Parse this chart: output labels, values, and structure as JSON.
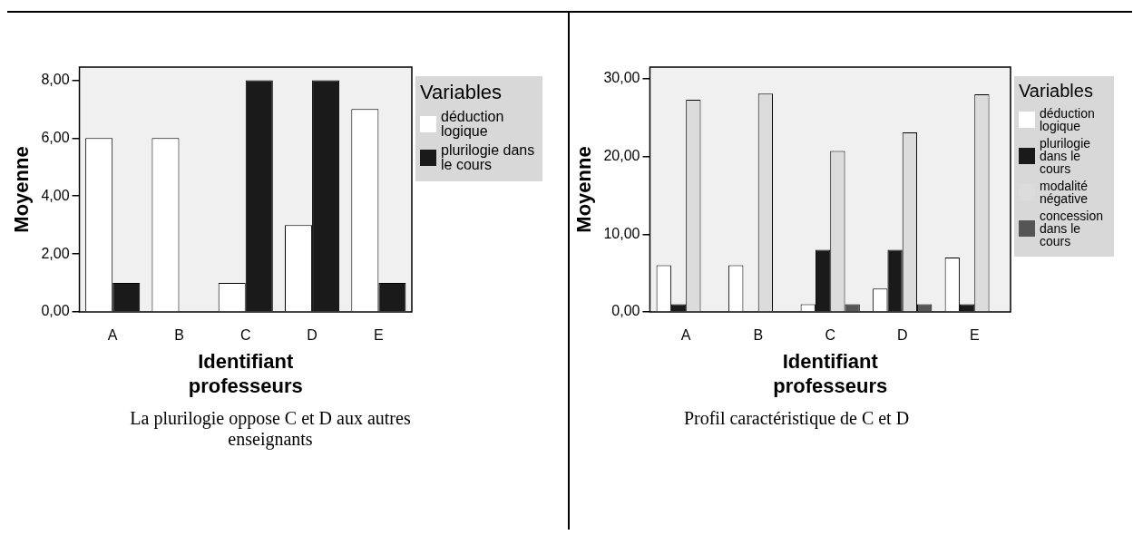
{
  "chart_data": [
    {
      "type": "bar",
      "xlabel": "Identifiant professeurs",
      "ylabel": "Moyenne",
      "legend_title": "Variables",
      "legend": "right",
      "grid": false,
      "categories": [
        "A",
        "B",
        "C",
        "D",
        "E"
      ],
      "series": [
        {
          "name": "déduction logique",
          "color": "#ffffff",
          "values": [
            6,
            6,
            1,
            3,
            7
          ]
        },
        {
          "name": "plurilogie dans le cours",
          "color": "#1a1a1a",
          "values": [
            1,
            0,
            8,
            8,
            1
          ]
        }
      ],
      "ylim": [
        0,
        8.45
      ],
      "yticks": [
        {
          "value": 0,
          "label": "0,00"
        },
        {
          "value": 2,
          "label": "2,00"
        },
        {
          "value": 4,
          "label": "4,00"
        },
        {
          "value": 6,
          "label": "6,00"
        },
        {
          "value": 8,
          "label": "8,00"
        }
      ],
      "annotations": [
        "La plurilogie oppose C et D aux autres enseignants"
      ]
    },
    {
      "type": "bar",
      "xlabel": "Identifiant professeurs",
      "ylabel": "Moyenne",
      "legend_title": "Variables",
      "legend": "right",
      "grid": false,
      "categories": [
        "A",
        "B",
        "C",
        "D",
        "E"
      ],
      "series": [
        {
          "name": "déduction logique",
          "color": "#ffffff",
          "values": [
            6,
            6,
            1,
            3,
            7
          ]
        },
        {
          "name": "plurilogie dans le cours",
          "color": "#1a1a1a",
          "values": [
            1,
            0,
            8,
            8,
            1
          ]
        },
        {
          "name": "modalité négative",
          "color": "#dcdcdc",
          "values": [
            27.3,
            28.1,
            20.7,
            23.1,
            28
          ]
        },
        {
          "name": "concession dans le cours",
          "color": "#555555",
          "values": [
            0,
            0,
            1,
            1,
            0
          ]
        }
      ],
      "ylim": [
        0,
        31.5
      ],
      "yticks": [
        {
          "value": 0,
          "label": "0,00"
        },
        {
          "value": 10,
          "label": "10,00"
        },
        {
          "value": 20,
          "label": "20,00"
        },
        {
          "value": 30,
          "label": "30,00"
        }
      ],
      "annotations": [
        "Profil caractéristique de C et D"
      ]
    }
  ]
}
